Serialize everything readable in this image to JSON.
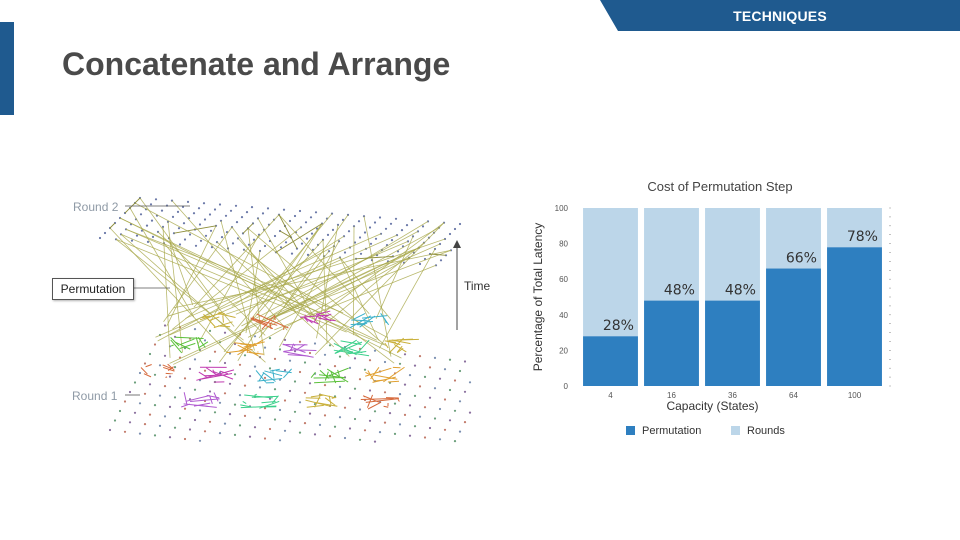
{
  "header": {
    "section_tag": "TECHNIQUES",
    "title": "Concatenate and Arrange"
  },
  "diagram": {
    "round2_label": "Round 2",
    "round1_label": "Round 1",
    "permutation_label": "Permutation",
    "time_label": "Time"
  },
  "chart_data": {
    "type": "bar",
    "title": "Cost of Permutation Step",
    "xlabel": "Capacity (States)",
    "ylabel": "Percentage of Total Latency",
    "categories": [
      "4",
      "16",
      "36",
      "64",
      "100"
    ],
    "series": [
      {
        "name": "Permutation",
        "color": "#2e7fc0",
        "values": [
          28,
          48,
          48,
          66,
          78
        ]
      },
      {
        "name": "Rounds",
        "color": "#bcd6e9",
        "values": [
          72,
          52,
          52,
          34,
          22
        ]
      }
    ],
    "stacked": true,
    "data_labels": [
      "28%",
      "48%",
      "48%",
      "66%",
      "78%"
    ],
    "yticks": [
      0,
      20,
      40,
      60,
      80,
      100
    ],
    "ylim": [
      0,
      100
    ],
    "legend_position": "bottom",
    "grid": false
  }
}
